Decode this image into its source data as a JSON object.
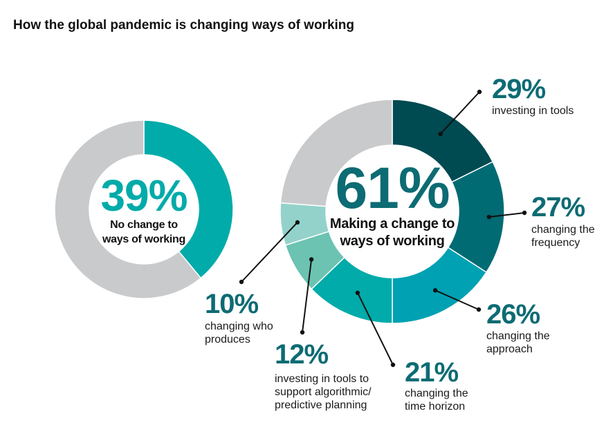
{
  "chart_data": {
    "type": "pie",
    "title": "How the global pandemic is changing ways of working",
    "charts": [
      {
        "kind": "donut",
        "center_value": "39%",
        "center_label": [
          "No change to",
          "ways of working"
        ],
        "slices": [
          {
            "label": "No change to ways of working",
            "value": 39,
            "color": "#00aba9"
          },
          {
            "label": "",
            "value": 61,
            "color": "#c9cacc"
          }
        ]
      },
      {
        "kind": "donut",
        "center_value": "61%",
        "center_label": [
          "Making a change to",
          "ways of working"
        ],
        "slices": [
          {
            "label": "investing in tools",
            "value": 29,
            "pct_text": "29%",
            "lines": [
              "investing in tools"
            ],
            "color": "#004a52"
          },
          {
            "label": "changing the frequency",
            "value": 27,
            "pct_text": "27%",
            "lines": [
              "changing the",
              "frequency"
            ],
            "color": "#006b73"
          },
          {
            "label": "changing the approach",
            "value": 26,
            "pct_text": "26%",
            "lines": [
              "changing the",
              "approach"
            ],
            "color": "#00a1b3"
          },
          {
            "label": "changing the time horizon",
            "value": 21,
            "pct_text": "21%",
            "lines": [
              "changing the",
              "time horizon"
            ],
            "color": "#00aba9"
          },
          {
            "label": "investing in tools to support algorithmic/predictive planning",
            "value": 12,
            "pct_text": "12%",
            "lines": [
              "investing in tools to",
              "support algorithmic/",
              "predictive planning"
            ],
            "color": "#6cc3b2"
          },
          {
            "label": "changing who produces",
            "value": 10,
            "pct_text": "10%",
            "lines": [
              "changing who",
              "produces"
            ],
            "color": "#93d2ca"
          },
          {
            "label": "",
            "value": 39,
            "color": "#c9cacc"
          }
        ]
      }
    ],
    "colors": {
      "pct_text": "#0d6b73",
      "grey": "#c9cacc",
      "accent": "#00aba9"
    }
  }
}
